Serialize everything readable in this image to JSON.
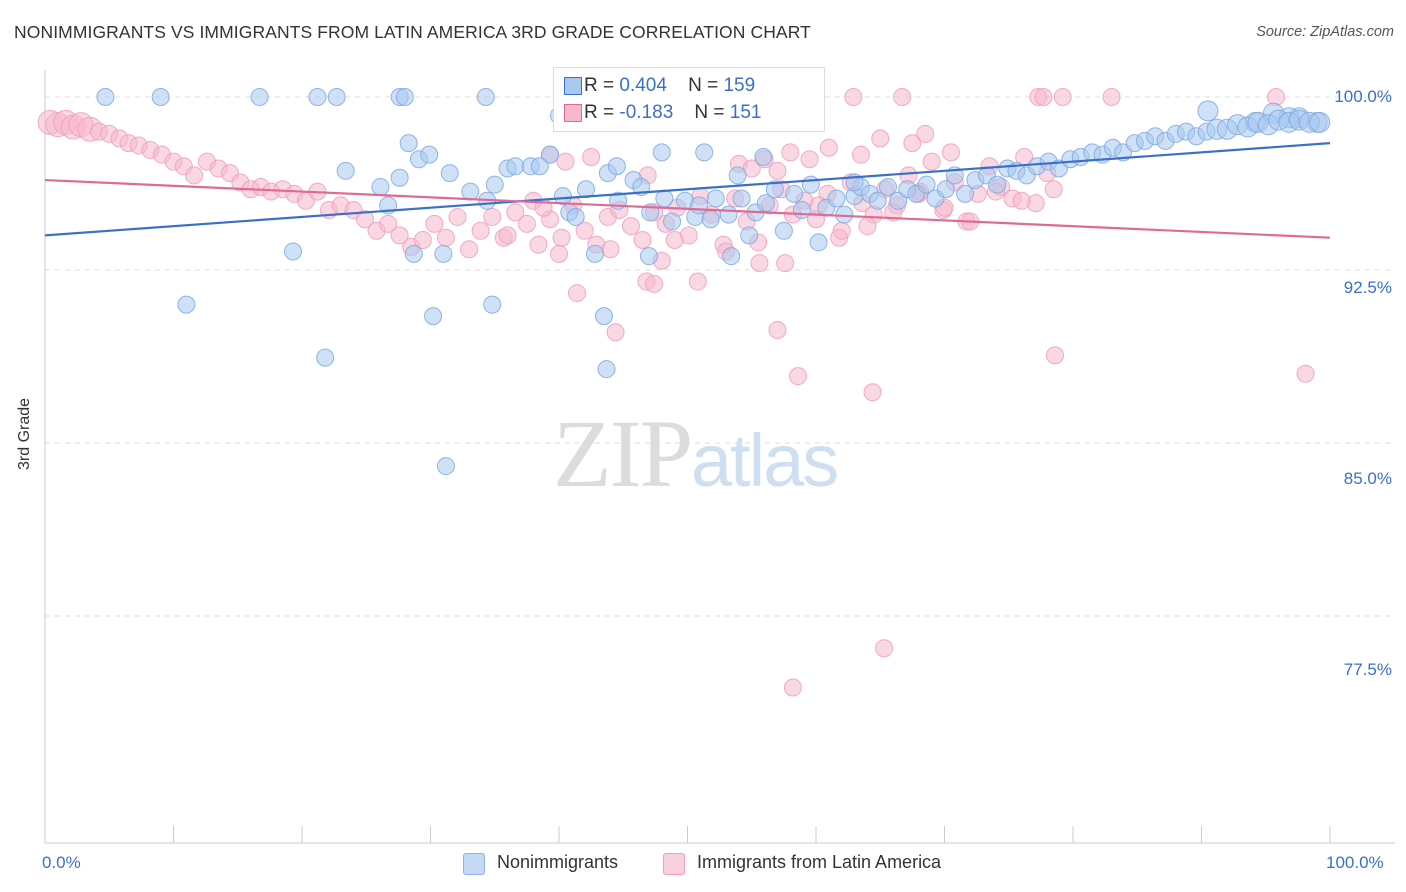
{
  "title": "NONIMMIGRANTS VS IMMIGRANTS FROM LATIN AMERICA 3RD GRADE CORRELATION CHART",
  "source": "Source: ZipAtlas.com",
  "watermark": {
    "zip": "ZIP",
    "atlas": "atlas"
  },
  "colors": {
    "blue": "#3a70c9",
    "blue_fill": "#a8c8f0",
    "pink": "#e06a96",
    "pink_fill": "#f5b8cc",
    "grid": "#dddddd"
  },
  "legend_top": {
    "rows": [
      {
        "r_label": "R =",
        "r_value": "0.404",
        "n_label": "N =",
        "n_value": "159"
      },
      {
        "r_label": "R =",
        "r_value": "-0.183",
        "n_label": "N =",
        "n_value": "151"
      }
    ]
  },
  "chart_data": {
    "type": "scatter",
    "title": "NONIMMIGRANTS VS IMMIGRANTS FROM LATIN AMERICA 3RD GRADE CORRELATION CHART",
    "xlabel": "",
    "ylabel": "3rd Grade",
    "xlim": [
      0,
      100
    ],
    "ylim": [
      70.5,
      101.2
    ],
    "x_tick_labels": [
      "0.0%",
      "100.0%"
    ],
    "y_tick_labels": [
      "100.0%",
      "92.5%",
      "85.0%",
      "77.5%"
    ],
    "y_ticks": [
      100.0,
      92.5,
      85.0,
      77.5
    ],
    "grid": true,
    "legend_position": "top-center",
    "series": [
      {
        "name": "Nonimmigrants",
        "color": "#3a70c9",
        "trend": {
          "x": [
            0,
            100
          ],
          "y": [
            94.0,
            98.0
          ],
          "r": 0.404,
          "n": 159
        },
        "points": [
          [
            4.7,
            100
          ],
          [
            9.0,
            100
          ],
          [
            16.7,
            100
          ],
          [
            21.2,
            100
          ],
          [
            22.7,
            100
          ],
          [
            27.6,
            100
          ],
          [
            28.0,
            100
          ],
          [
            34.3,
            100
          ],
          [
            40.0,
            99.2
          ],
          [
            90.5,
            99.4
          ],
          [
            95.6,
            99.3
          ],
          [
            97.6,
            99.1
          ],
          [
            99.0,
            98.9
          ],
          [
            96.8,
            99.1
          ],
          [
            94.2,
            98.9
          ],
          [
            11.0,
            91.0
          ],
          [
            19.3,
            93.3
          ],
          [
            21.8,
            88.7
          ],
          [
            30.2,
            90.5
          ],
          [
            31.2,
            84.0
          ],
          [
            34.8,
            91.0
          ],
          [
            43.5,
            90.5
          ],
          [
            43.7,
            88.2
          ],
          [
            47.0,
            93.1
          ],
          [
            53.4,
            93.1
          ],
          [
            42.8,
            93.2
          ],
          [
            28.7,
            93.2
          ],
          [
            23.4,
            96.8
          ],
          [
            26.1,
            96.1
          ],
          [
            27.6,
            96.5
          ],
          [
            29.1,
            97.3
          ],
          [
            28.3,
            98.0
          ],
          [
            29.9,
            97.5
          ],
          [
            31.5,
            96.7
          ],
          [
            33.1,
            95.9
          ],
          [
            34.4,
            95.5
          ],
          [
            35.0,
            96.2
          ],
          [
            36.0,
            96.9
          ],
          [
            36.6,
            97.0
          ],
          [
            37.8,
            97.0
          ],
          [
            39.3,
            97.5
          ],
          [
            38.5,
            97.0
          ],
          [
            40.3,
            95.7
          ],
          [
            40.8,
            95.0
          ],
          [
            41.3,
            94.8
          ],
          [
            42.1,
            96.0
          ],
          [
            43.8,
            96.7
          ],
          [
            44.6,
            95.5
          ],
          [
            45.8,
            96.4
          ],
          [
            46.4,
            96.1
          ],
          [
            47.1,
            95.0
          ],
          [
            48.2,
            95.6
          ],
          [
            48.8,
            94.6
          ],
          [
            49.8,
            95.5
          ],
          [
            50.6,
            94.8
          ],
          [
            50.9,
            95.3
          ],
          [
            51.3,
            97.6
          ],
          [
            51.8,
            94.7
          ],
          [
            52.2,
            95.6
          ],
          [
            53.2,
            94.9
          ],
          [
            54.2,
            95.6
          ],
          [
            54.8,
            94.0
          ],
          [
            55.3,
            95.0
          ],
          [
            56.1,
            95.4
          ],
          [
            56.8,
            96.0
          ],
          [
            57.5,
            94.2
          ],
          [
            58.3,
            95.8
          ],
          [
            58.9,
            95.1
          ],
          [
            59.6,
            96.2
          ],
          [
            60.2,
            93.7
          ],
          [
            60.8,
            95.2
          ],
          [
            61.6,
            95.6
          ],
          [
            62.2,
            94.9
          ],
          [
            63.0,
            95.7
          ],
          [
            63.5,
            96.1
          ],
          [
            64.2,
            95.8
          ],
          [
            64.8,
            95.5
          ],
          [
            65.6,
            96.1
          ],
          [
            66.4,
            95.5
          ],
          [
            67.1,
            96.0
          ],
          [
            67.8,
            95.8
          ],
          [
            68.6,
            96.2
          ],
          [
            69.3,
            95.6
          ],
          [
            70.1,
            96.0
          ],
          [
            70.8,
            96.6
          ],
          [
            71.6,
            95.8
          ],
          [
            72.4,
            96.4
          ],
          [
            73.3,
            96.6
          ],
          [
            74.1,
            96.2
          ],
          [
            74.9,
            96.9
          ],
          [
            75.6,
            96.8
          ],
          [
            76.4,
            96.6
          ],
          [
            77.2,
            97.0
          ],
          [
            78.1,
            97.2
          ],
          [
            78.9,
            96.9
          ],
          [
            79.8,
            97.3
          ],
          [
            80.6,
            97.4
          ],
          [
            81.5,
            97.6
          ],
          [
            82.3,
            97.5
          ],
          [
            83.1,
            97.8
          ],
          [
            83.9,
            97.6
          ],
          [
            84.8,
            98.0
          ],
          [
            85.6,
            98.1
          ],
          [
            86.4,
            98.3
          ],
          [
            87.2,
            98.1
          ],
          [
            88.0,
            98.4
          ],
          [
            88.8,
            98.5
          ],
          [
            89.6,
            98.3
          ],
          [
            90.4,
            98.5
          ],
          [
            91.2,
            98.6
          ],
          [
            92.0,
            98.6
          ],
          [
            92.8,
            98.8
          ],
          [
            93.6,
            98.7
          ],
          [
            94.4,
            98.9
          ],
          [
            95.2,
            98.8
          ],
          [
            96.0,
            99.0
          ],
          [
            96.8,
            98.9
          ],
          [
            97.6,
            99.0
          ],
          [
            98.4,
            98.9
          ],
          [
            99.2,
            98.9
          ],
          [
            53.9,
            96.6
          ],
          [
            55.9,
            97.4
          ],
          [
            44.5,
            97.0
          ],
          [
            48.0,
            97.6
          ],
          [
            26.7,
            95.3
          ],
          [
            31.0,
            93.2
          ],
          [
            63.0,
            96.3
          ]
        ]
      },
      {
        "name": "Immigrants from Latin America",
        "color": "#e06a96",
        "trend": {
          "x": [
            0,
            100
          ],
          "y": [
            96.4,
            93.9
          ],
          "r": -0.183,
          "n": 151
        },
        "points": [
          [
            0.4,
            98.9
          ],
          [
            1.0,
            98.8
          ],
          [
            1.6,
            98.9
          ],
          [
            2.2,
            98.7
          ],
          [
            2.8,
            98.8
          ],
          [
            3.5,
            98.6
          ],
          [
            4.2,
            98.5
          ],
          [
            5.0,
            98.4
          ],
          [
            5.8,
            98.2
          ],
          [
            6.5,
            98.0
          ],
          [
            7.3,
            97.9
          ],
          [
            8.2,
            97.7
          ],
          [
            9.1,
            97.5
          ],
          [
            10.0,
            97.2
          ],
          [
            10.8,
            97.0
          ],
          [
            11.6,
            96.6
          ],
          [
            12.6,
            97.2
          ],
          [
            13.5,
            96.9
          ],
          [
            14.4,
            96.7
          ],
          [
            15.2,
            96.3
          ],
          [
            16.0,
            96.0
          ],
          [
            16.8,
            96.1
          ],
          [
            17.6,
            95.9
          ],
          [
            18.5,
            96.0
          ],
          [
            19.4,
            95.8
          ],
          [
            20.3,
            95.5
          ],
          [
            21.2,
            95.9
          ],
          [
            22.1,
            95.1
          ],
          [
            23.0,
            95.3
          ],
          [
            24.0,
            95.1
          ],
          [
            24.9,
            94.7
          ],
          [
            25.8,
            94.2
          ],
          [
            26.7,
            94.5
          ],
          [
            27.6,
            94.0
          ],
          [
            28.5,
            93.5
          ],
          [
            29.4,
            93.8
          ],
          [
            30.3,
            94.5
          ],
          [
            31.2,
            93.9
          ],
          [
            32.1,
            94.8
          ],
          [
            33.0,
            93.4
          ],
          [
            33.9,
            94.2
          ],
          [
            34.8,
            94.8
          ],
          [
            35.7,
            93.9
          ],
          [
            36.6,
            95.0
          ],
          [
            37.5,
            94.5
          ],
          [
            38.4,
            93.6
          ],
          [
            39.3,
            94.7
          ],
          [
            40.2,
            93.9
          ],
          [
            41.1,
            95.3
          ],
          [
            42.0,
            94.2
          ],
          [
            42.9,
            93.6
          ],
          [
            43.8,
            94.8
          ],
          [
            44.7,
            95.1
          ],
          [
            45.6,
            94.4
          ],
          [
            46.5,
            93.8
          ],
          [
            47.4,
            95.0
          ],
          [
            48.3,
            94.5
          ],
          [
            49.2,
            95.2
          ],
          [
            50.1,
            94.0
          ],
          [
            51.0,
            95.7
          ],
          [
            51.9,
            94.9
          ],
          [
            52.8,
            93.6
          ],
          [
            53.7,
            95.6
          ],
          [
            54.6,
            94.6
          ],
          [
            55.5,
            93.7
          ],
          [
            56.4,
            95.3
          ],
          [
            57.3,
            96.0
          ],
          [
            58.2,
            94.9
          ],
          [
            59.1,
            95.5
          ],
          [
            60.0,
            94.7
          ],
          [
            60.9,
            95.8
          ],
          [
            61.8,
            93.9
          ],
          [
            62.7,
            96.3
          ],
          [
            63.6,
            95.4
          ],
          [
            64.5,
            94.9
          ],
          [
            65.4,
            96.0
          ],
          [
            66.3,
            95.3
          ],
          [
            67.2,
            96.6
          ],
          [
            68.1,
            95.9
          ],
          [
            69.0,
            97.2
          ],
          [
            69.9,
            95.1
          ],
          [
            70.8,
            96.3
          ],
          [
            71.7,
            94.6
          ],
          [
            72.6,
            95.8
          ],
          [
            73.5,
            97.0
          ],
          [
            74.4,
            96.1
          ],
          [
            75.3,
            95.6
          ],
          [
            76.2,
            97.4
          ],
          [
            77.1,
            95.4
          ],
          [
            78.0,
            96.7
          ],
          [
            62.9,
            100
          ],
          [
            66.7,
            100
          ],
          [
            77.3,
            100
          ],
          [
            77.7,
            100
          ],
          [
            79.2,
            100
          ],
          [
            83.0,
            100
          ],
          [
            95.8,
            100
          ],
          [
            41.4,
            91.5
          ],
          [
            44.4,
            89.8
          ],
          [
            46.8,
            92.0
          ],
          [
            47.4,
            91.9
          ],
          [
            57.0,
            89.9
          ],
          [
            58.6,
            87.9
          ],
          [
            64.4,
            87.2
          ],
          [
            78.6,
            88.8
          ],
          [
            98.1,
            88.0
          ],
          [
            65.3,
            76.1
          ],
          [
            58.2,
            74.4
          ],
          [
            39.3,
            97.5
          ],
          [
            40.5,
            97.2
          ],
          [
            42.5,
            97.4
          ],
          [
            46.9,
            96.6
          ],
          [
            54.0,
            97.1
          ],
          [
            55.0,
            96.9
          ],
          [
            56.0,
            97.3
          ],
          [
            57.0,
            96.8
          ],
          [
            58.0,
            97.6
          ],
          [
            59.5,
            97.3
          ],
          [
            61.0,
            97.8
          ],
          [
            63.5,
            97.5
          ],
          [
            65.0,
            98.2
          ],
          [
            67.5,
            98.0
          ],
          [
            68.5,
            98.4
          ],
          [
            70.5,
            97.6
          ],
          [
            36.0,
            94.0
          ],
          [
            38.0,
            95.5
          ],
          [
            40.0,
            93.2
          ],
          [
            44.0,
            93.4
          ],
          [
            48.0,
            92.9
          ],
          [
            49.0,
            93.8
          ],
          [
            50.8,
            92.0
          ],
          [
            53.0,
            93.3
          ],
          [
            55.6,
            92.8
          ],
          [
            57.6,
            92.8
          ],
          [
            60.2,
            95.3
          ],
          [
            62.0,
            94.2
          ],
          [
            64.0,
            94.4
          ],
          [
            66.0,
            95.0
          ],
          [
            68.0,
            95.8
          ],
          [
            70.0,
            95.2
          ],
          [
            72.0,
            94.6
          ],
          [
            74.0,
            95.9
          ],
          [
            76.0,
            95.5
          ],
          [
            78.5,
            96.0
          ],
          [
            38.8,
            95.2
          ]
        ]
      }
    ]
  },
  "legend_bottom": {
    "items": [
      {
        "label": "Nonimmigrants"
      },
      {
        "label": "Immigrants from Latin America"
      }
    ]
  }
}
